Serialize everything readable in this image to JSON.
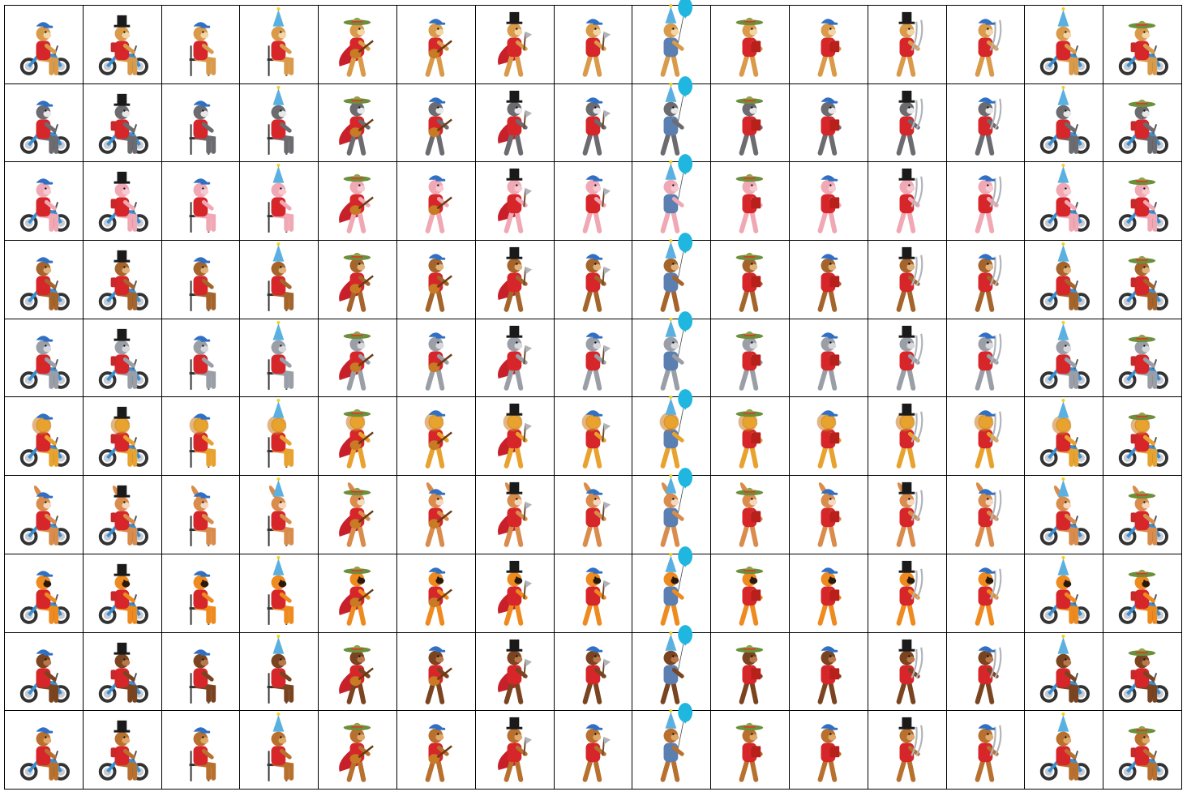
{
  "sheet": {
    "columns": 15,
    "rows": 10
  },
  "poses": [
    {
      "pose": "riding-motorcycle",
      "prop": "blue-motorcycle",
      "hat": "blue-cap"
    },
    {
      "pose": "riding-motorcycle",
      "prop": "blue-motorcycle",
      "hat": "top-hat"
    },
    {
      "pose": "sitting-on-chair",
      "prop": "chair",
      "hat": "blue-cap"
    },
    {
      "pose": "sitting-on-chair",
      "prop": "chair",
      "hat": "party-hat"
    },
    {
      "pose": "playing-guitar",
      "prop": "guitar",
      "hat": "sombrero"
    },
    {
      "pose": "playing-guitar",
      "prop": "guitar",
      "hat": "blue-cap"
    },
    {
      "pose": "walking-with-axe",
      "prop": "axe",
      "hat": "top-hat"
    },
    {
      "pose": "walking-with-axe",
      "prop": "axe",
      "hat": "blue-cap"
    },
    {
      "pose": "holding-balloon",
      "prop": "balloon",
      "hat": "party-hat"
    },
    {
      "pose": "reading-book",
      "prop": "book",
      "hat": "sombrero"
    },
    {
      "pose": "reading-book",
      "prop": "book",
      "hat": "blue-cap"
    },
    {
      "pose": "holding-swords",
      "prop": "swords",
      "hat": "top-hat"
    },
    {
      "pose": "holding-swords",
      "prop": "swords",
      "hat": "blue-cap"
    },
    {
      "pose": "riding-motorcycle",
      "prop": "blue-motorcycle",
      "hat": "party-hat"
    },
    {
      "pose": "riding-motorcycle",
      "prop": "blue-motorcycle",
      "hat": "sombrero"
    }
  ],
  "characters": [
    {
      "name": "hamster",
      "fur": "#d99a4a",
      "accent": "#f2d6a8"
    },
    {
      "name": "raccoon",
      "fur": "#6b6b70",
      "accent": "#e8e8e8"
    },
    {
      "name": "pig",
      "fur": "#f0a8b4",
      "accent": "#f7c9d1"
    },
    {
      "name": "monkey",
      "fur": "#a4642c",
      "accent": "#e0b27a"
    },
    {
      "name": "robot",
      "fur": "#9a9ea6",
      "accent": "#d6d8dc"
    },
    {
      "name": "lion",
      "fur": "#e8a22e",
      "accent": "#f5d27a"
    },
    {
      "name": "rabbit",
      "fur": "#d98c4c",
      "accent": "#f4d9c0"
    },
    {
      "name": "tiger",
      "fur": "#ee8a1e",
      "accent": "#2a1a0e"
    },
    {
      "name": "gorilla",
      "fur": "#7a4420",
      "accent": "#b8784a"
    },
    {
      "name": "bear",
      "fur": "#b8702e",
      "accent": "#e0a868"
    }
  ],
  "colors": {
    "shirt": "#d6262a",
    "cape": "#c8202a",
    "cap": "#2f6fc4",
    "bike": "#3a8fd4",
    "tire": "#333333",
    "balloon": "#1fb6e0",
    "sombrero": "#6b8f3a",
    "topHat": "#1a1a1a",
    "partyHat": "#5ab0e0",
    "chair": "#333333",
    "book": "#b8201c",
    "steel": "#b0b4ba",
    "guitar": "#c87a24",
    "pants": "#3b4a6e"
  }
}
